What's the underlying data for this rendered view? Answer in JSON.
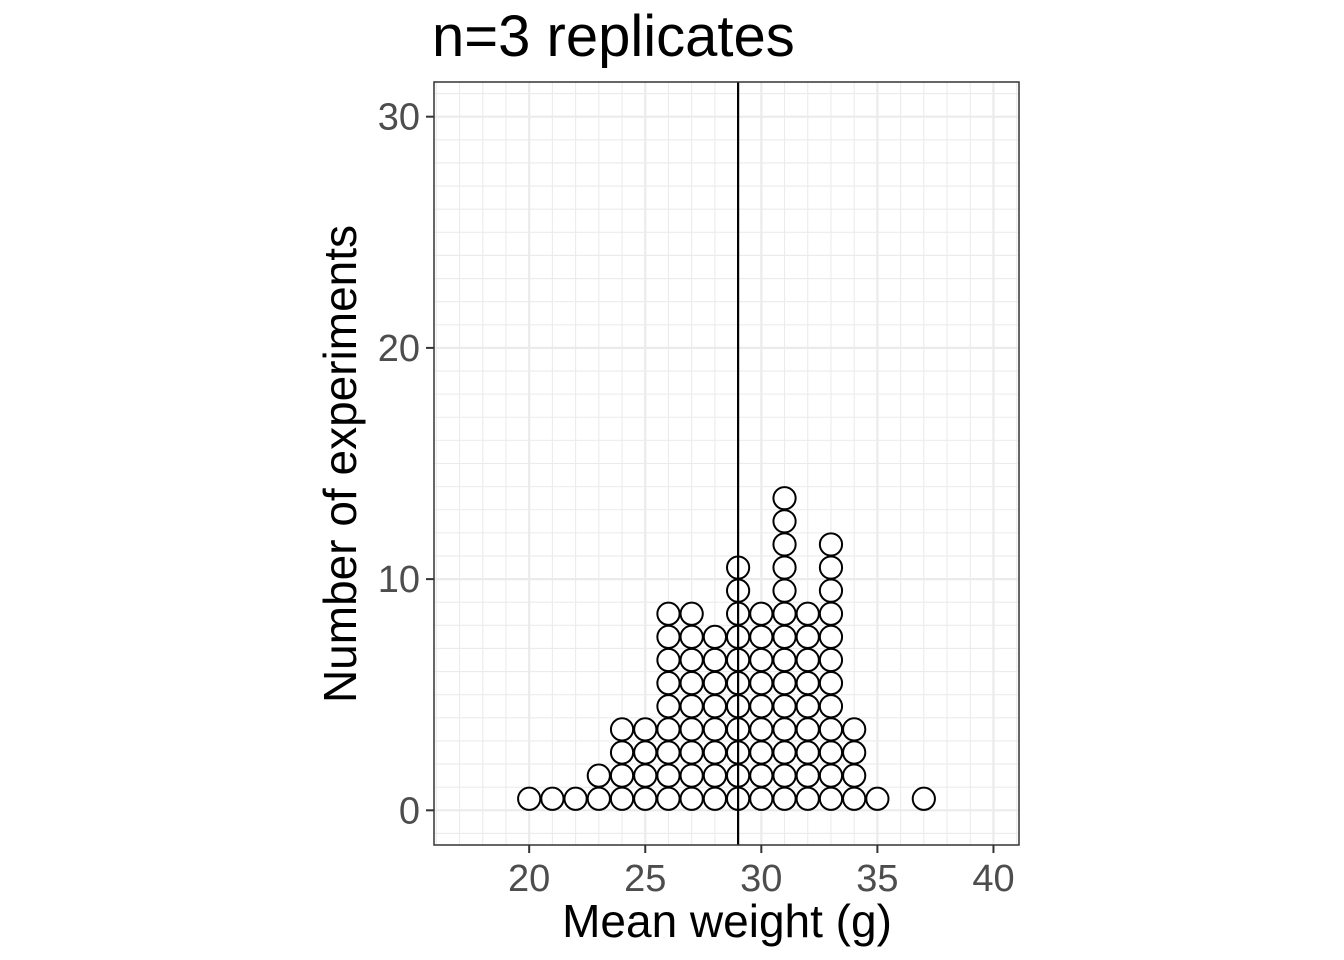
{
  "chart_data": {
    "type": "dotplot",
    "title": "n=3 replicates",
    "xlabel": "Mean weight (g)",
    "ylabel": "Number of experiments",
    "xlim": [
      15.9,
      41.1
    ],
    "ylim": [
      -1.5,
      31.5
    ],
    "x_ticks": [
      20,
      25,
      30,
      35,
      40
    ],
    "y_ticks": [
      0,
      10,
      20,
      30
    ],
    "grid": true,
    "reference_line_x": 29,
    "bins": [
      {
        "x": 20,
        "count": 1
      },
      {
        "x": 21,
        "count": 1
      },
      {
        "x": 22,
        "count": 1
      },
      {
        "x": 23,
        "count": 2
      },
      {
        "x": 24,
        "count": 4
      },
      {
        "x": 25,
        "count": 4
      },
      {
        "x": 26,
        "count": 9
      },
      {
        "x": 27,
        "count": 9
      },
      {
        "x": 28,
        "count": 8
      },
      {
        "x": 29,
        "count": 11
      },
      {
        "x": 30,
        "count": 9
      },
      {
        "x": 31,
        "count": 14
      },
      {
        "x": 32,
        "count": 9
      },
      {
        "x": 33,
        "count": 12
      },
      {
        "x": 34,
        "count": 4
      },
      {
        "x": 35,
        "count": 1
      },
      {
        "x": 37,
        "count": 1
      }
    ],
    "colors": {
      "dot_fill": "#ffffff",
      "dot_stroke": "#000000",
      "grid": "#ebebeb",
      "panel_border": "#333333",
      "ref_line": "#000000"
    }
  }
}
